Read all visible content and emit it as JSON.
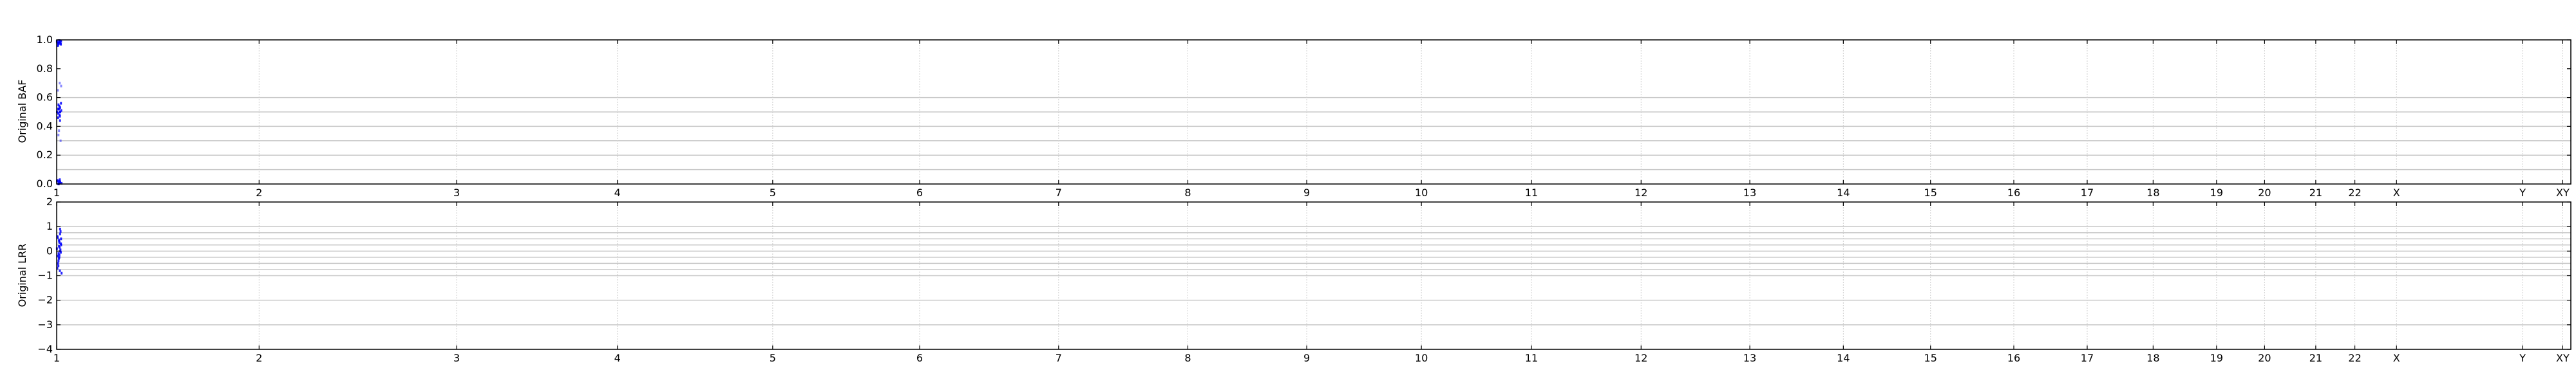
{
  "chart_data": [
    {
      "type": "scatter",
      "panel": "baf",
      "ylabel": "Original BAF",
      "xlabel": "",
      "ylim": [
        0,
        1
      ],
      "yticks": [
        0.0,
        0.2,
        0.4,
        0.6,
        0.8,
        1.0
      ],
      "ytick_labels": [
        "0.0",
        "0.2",
        "0.4",
        "0.6",
        "0.8",
        "1.0"
      ],
      "hgrid": [
        0.1,
        0.2,
        0.3,
        0.4,
        0.5,
        0.6
      ],
      "chromosomes": [
        "1",
        "2",
        "3",
        "4",
        "5",
        "6",
        "7",
        "8",
        "9",
        "10",
        "11",
        "12",
        "13",
        "14",
        "15",
        "16",
        "17",
        "18",
        "19",
        "20",
        "21",
        "22",
        "X",
        "Y",
        "XY"
      ],
      "chrom_start": [
        0,
        249.25,
        492.45,
        690.47,
        881.63,
        1062.55,
        1233.66,
        1392.8,
        1539.16,
        1680.37,
        1815.9,
        1950.9,
        2084.75,
        2199.92,
        2307.27,
        2409.8,
        2500.16,
        2581.36,
        2659.44,
        2718.56,
        2781.59,
        2829.72,
        2881.02,
        3036.29,
        3085.66
      ],
      "xlim": [
        0,
        3095.68
      ],
      "grid": true,
      "color": "#0000ff",
      "series": [
        {
          "x": [
            0.3,
            0.8,
            1.4,
            2.1,
            2.9,
            3.5,
            4.2,
            0.5,
            1.1,
            1.9,
            2.6,
            3.3,
            4.0
          ],
          "y": [
            0.99,
            0.98,
            0.995,
            0.97,
            0.985,
            0.99,
            0.975,
            0.96,
            0.995,
            0.98,
            0.99,
            0.97,
            0.985
          ]
        },
        {
          "x": [
            0.4,
            1.0,
            1.6,
            2.3,
            3.0,
            3.7,
            4.3,
            0.7,
            1.3,
            2.0,
            2.7,
            3.4,
            4.1,
            1.8,
            2.5
          ],
          "y": [
            0.5,
            0.52,
            0.48,
            0.55,
            0.47,
            0.51,
            0.53,
            0.46,
            0.54,
            0.49,
            0.5,
            0.56,
            0.44,
            0.52,
            0.5
          ]
        },
        {
          "x": [
            0.5,
            1.2,
            1.9,
            2.6,
            3.3,
            4.0,
            0.9,
            1.6,
            2.3,
            3.1
          ],
          "y": [
            0.02,
            0.0,
            0.03,
            0.01,
            0.015,
            0.005,
            0.025,
            0.0,
            0.01,
            0.02
          ]
        },
        {
          "x": [
            1.5,
            2.8,
            3.6,
            2.2,
            3.9,
            1.0
          ],
          "y": [
            0.65,
            0.7,
            0.68,
            0.34,
            0.3,
            0.37
          ],
          "faint": true
        }
      ]
    },
    {
      "type": "scatter",
      "panel": "lrr",
      "ylabel": "Original LRR",
      "xlabel": "",
      "ylim": [
        -4,
        2
      ],
      "yticks": [
        -4,
        -3,
        -2,
        -1,
        0,
        1,
        2
      ],
      "ytick_labels": [
        "−4",
        "−3",
        "−2",
        "−1",
        "0",
        "1",
        "2"
      ],
      "hgrid": [
        -3,
        -2,
        -1,
        -0.75,
        -0.5,
        -0.25,
        0,
        0.25,
        0.5,
        0.75,
        1
      ],
      "chromosomes": [
        "1",
        "2",
        "3",
        "4",
        "5",
        "6",
        "7",
        "8",
        "9",
        "10",
        "11",
        "12",
        "13",
        "14",
        "15",
        "16",
        "17",
        "18",
        "19",
        "20",
        "21",
        "22",
        "X",
        "Y",
        "XY"
      ],
      "chrom_start": [
        0,
        249.25,
        492.45,
        690.47,
        881.63,
        1062.55,
        1233.66,
        1392.8,
        1539.16,
        1680.37,
        1815.9,
        1950.9,
        2084.75,
        2199.92,
        2307.27,
        2409.8,
        2500.16,
        2581.36,
        2659.44,
        2718.56,
        2781.59,
        2829.72,
        2881.02,
        3036.29,
        3085.66
      ],
      "xlim": [
        0,
        3095.68
      ],
      "grid": true,
      "color": "#0000ff",
      "series": [
        {
          "x": [
            0.3,
            0.7,
            1.1,
            1.5,
            1.9,
            2.3,
            2.7,
            3.1,
            3.5,
            3.9,
            4.3,
            0.5,
            0.9,
            1.3,
            1.7,
            2.1,
            2.5,
            2.9,
            3.3,
            3.7,
            4.1,
            1.2,
            2.4,
            3.6,
            0.8,
            2.0,
            3.2,
            4.2
          ],
          "y": [
            0.1,
            -0.2,
            0.4,
            -0.5,
            0.2,
            0.7,
            -0.3,
            0.0,
            0.5,
            -0.8,
            0.3,
            -0.1,
            0.6,
            -0.4,
            0.15,
            -0.6,
            0.35,
            0.8,
            -0.25,
            0.05,
            -0.9,
            0.55,
            -0.15,
            0.25,
            -0.7,
            0.45,
            -0.05,
            0.9
          ]
        }
      ]
    }
  ]
}
